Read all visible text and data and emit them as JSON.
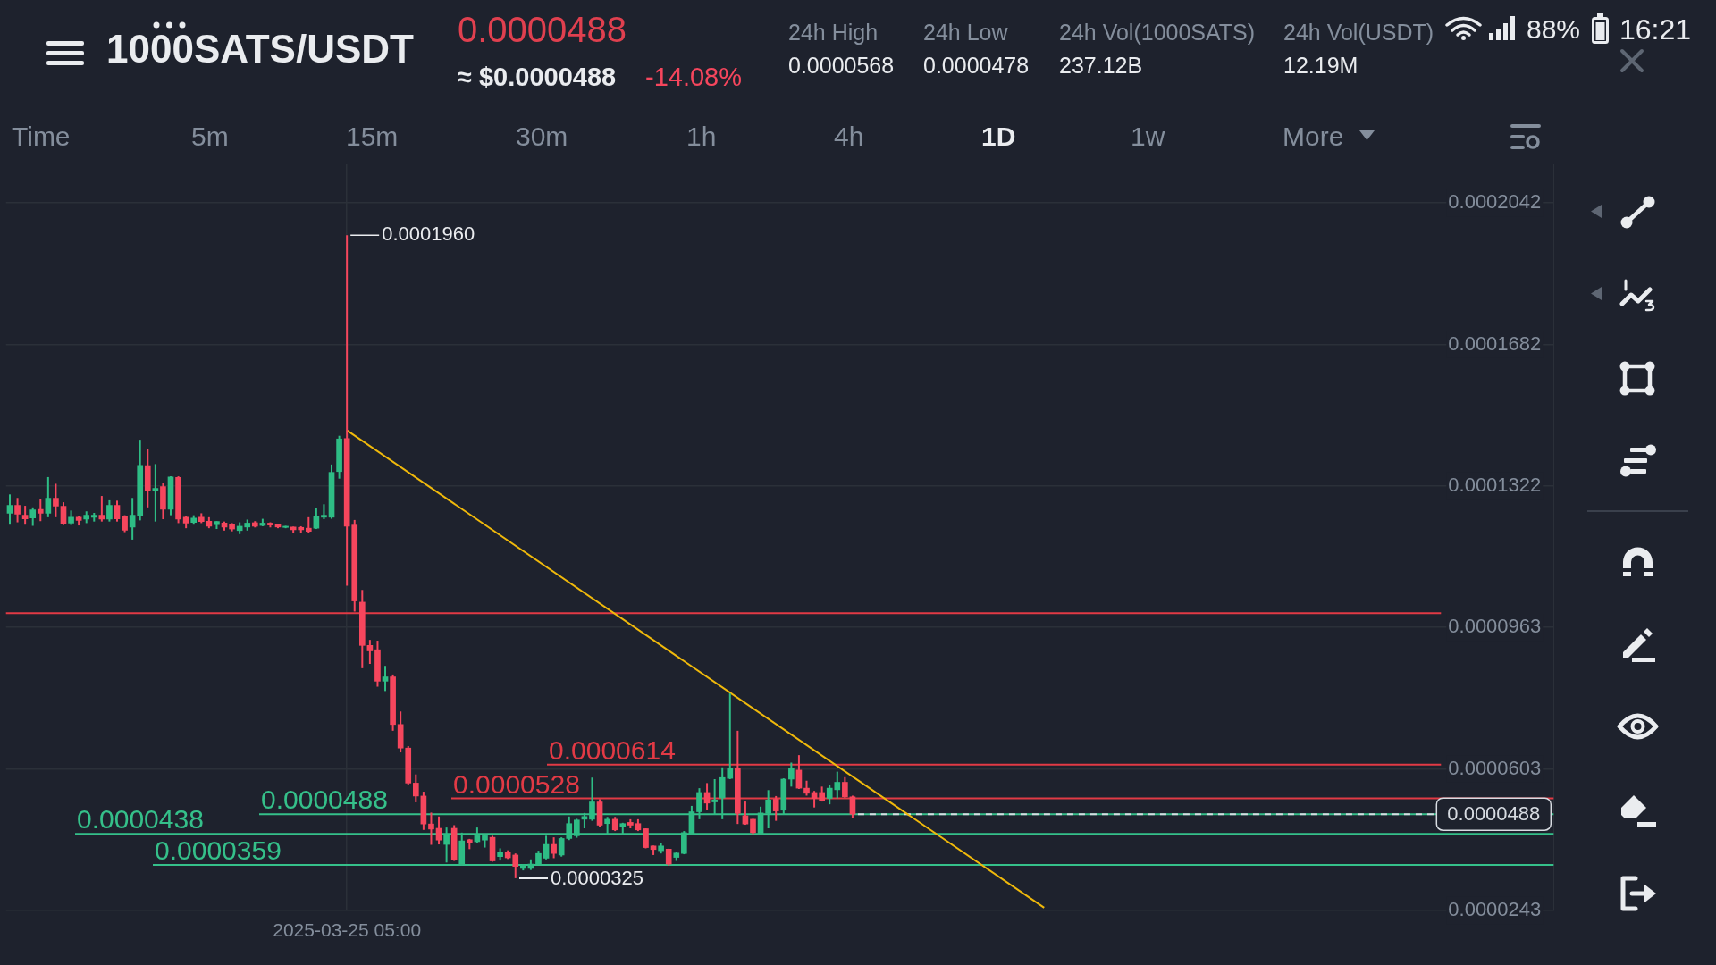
{
  "chart_data": {
    "type": "candlestick",
    "title": "1000SATS/USDT",
    "categories": [
      null,
      null,
      null,
      null,
      null,
      null,
      null,
      null,
      null,
      null,
      null,
      null,
      null,
      null,
      null,
      null,
      null,
      null,
      null,
      null,
      null,
      null,
      null,
      null,
      null,
      null,
      null,
      null,
      null,
      null,
      null,
      null,
      null,
      null,
      null,
      null,
      null,
      null,
      null,
      null,
      null,
      null,
      null,
      null,
      "2025-03-25 05:00",
      null,
      null,
      null,
      null,
      null,
      null,
      null,
      null,
      null,
      null,
      null,
      null,
      null,
      null,
      null,
      null,
      null,
      null,
      null,
      null,
      null,
      null,
      null,
      null,
      null,
      null,
      null,
      null,
      null,
      null,
      null,
      null,
      null,
      null,
      null,
      null,
      null,
      null,
      null,
      null,
      null,
      null,
      null,
      null,
      null,
      null,
      null,
      null,
      null,
      null,
      null,
      null,
      null,
      null,
      null,
      null,
      null,
      null,
      null,
      null,
      null,
      null,
      null,
      null,
      null,
      null,
      null,
      null,
      null,
      null,
      null,
      null,
      null,
      null,
      null,
      null,
      null,
      null,
      null,
      null,
      null,
      null,
      null,
      null,
      null,
      null,
      null,
      null,
      null,
      null,
      null,
      null,
      null,
      null,
      null,
      null,
      null,
      null,
      null,
      null,
      null,
      null,
      null,
      null,
      null,
      null,
      null,
      null,
      null,
      null,
      null,
      null,
      null,
      null,
      null,
      null,
      null,
      null,
      null,
      null,
      null,
      null,
      null,
      null,
      null,
      null,
      null,
      null,
      null,
      null,
      null,
      null,
      null,
      null,
      null,
      null,
      null,
      null,
      null,
      null,
      null,
      null,
      null,
      null,
      null,
      null,
      null,
      null,
      null,
      null,
      null,
      null,
      null,
      null,
      null,
      null,
      null
    ],
    "series": [
      {
        "ohlc": [
          [
            0.0001253,
            0.0001301,
            0.0001224,
            0.0001273
          ],
          [
            0.0001273,
            0.0001292,
            0.000123,
            0.0001251
          ],
          [
            0.0001248,
            0.0001272,
            0.0001224,
            0.0001239
          ],
          [
            0.0001241,
            0.0001268,
            0.0001221,
            0.0001262
          ],
          [
            0.0001263,
            0.0001288,
            0.0001233,
            0.0001253
          ],
          [
            0.0001253,
            0.0001345,
            0.0001243,
            0.0001291
          ],
          [
            0.0001291,
            0.0001328,
            0.0001243,
            0.0001271
          ],
          [
            0.0001271,
            0.0001281,
            0.0001223,
            0.0001226
          ],
          [
            0.0001228,
            0.000126,
            0.0001223,
            0.0001243
          ],
          [
            0.0001243,
            0.0001245,
            0.0001222,
            0.0001235
          ],
          [
            0.0001238,
            0.0001258,
            0.0001228,
            0.0001248
          ],
          [
            0.0001243,
            0.0001254,
            0.0001232,
            0.0001248
          ],
          [
            0.0001248,
            0.0001297,
            0.0001232,
            0.0001238
          ],
          [
            0.0001238,
            0.0001286,
            0.0001232,
            0.0001273
          ],
          [
            0.0001273,
            0.0001285,
            0.0001232,
            0.0001239
          ],
          [
            0.0001245,
            0.0001248,
            0.0001205,
            0.000121
          ],
          [
            0.0001218,
            0.0001292,
            0.0001186,
            0.0001248
          ],
          [
            0.0001247,
            0.000144,
            0.0001235,
            0.0001375
          ],
          [
            0.0001374,
            0.0001416,
            0.0001268,
            0.0001309
          ],
          [
            0.000131,
            0.0001378,
            0.0001232,
            0.0001316
          ],
          [
            0.0001321,
            0.000133,
            0.0001238,
            0.0001263
          ],
          [
            0.0001263,
            0.0001347,
            0.0001248,
            0.0001345
          ],
          [
            0.0001344,
            0.0001347,
            0.0001228,
            0.0001238
          ],
          [
            0.0001243,
            0.0001247,
            0.0001215,
            0.0001228
          ],
          [
            0.000123,
            0.0001248,
            0.0001224,
            0.0001241
          ],
          [
            0.0001243,
            0.0001253,
            0.0001228,
            0.0001232
          ],
          [
            0.0001233,
            0.0001243,
            0.0001215,
            0.000122
          ],
          [
            0.0001224,
            0.0001233,
            0.0001213,
            0.0001232
          ],
          [
            0.0001228,
            0.0001232,
            0.0001209,
            0.0001218
          ],
          [
            0.0001224,
            0.0001228,
            0.0001207,
            0.0001213
          ],
          [
            0.0001209,
            0.000123,
            0.00012,
            0.000122
          ],
          [
            0.0001218,
            0.0001237,
            0.0001209,
            0.0001228
          ],
          [
            0.0001229,
            0.0001233,
            0.0001217,
            0.000122
          ],
          [
            0.0001222,
            0.0001239,
            0.000122,
            0.0001228
          ],
          [
            0.0001228,
            0.000123,
            0.0001217,
            0.0001223
          ],
          [
            0.0001224,
            0.0001225,
            0.0001215,
            0.0001218
          ],
          [
            0.0001217,
            0.0001221,
            0.0001215,
            0.000122
          ],
          [
            0.0001218,
            0.0001219,
            0.0001203,
            0.0001211
          ],
          [
            0.0001217,
            0.000122,
            0.0001203,
            0.0001211
          ],
          [
            0.0001215,
            0.0001243,
            0.0001203,
            0.0001207
          ],
          [
            0.0001215,
            0.0001266,
            0.0001213,
            0.0001245
          ],
          [
            0.0001243,
            0.0001276,
            0.0001238,
            0.0001248
          ],
          [
            0.0001243,
            0.0001377,
            0.0001239,
            0.0001357
          ],
          [
            0.0001359,
            0.000145,
            0.0001341,
            0.0001442
          ],
          [
            0.0001443,
            0.000196,
            0.0001069,
            0.000122
          ],
          [
            0.0001223,
            0.0001236,
            0.0001003,
            0.000103
          ],
          [
            0.0001027,
            0.0001058,
            8.59e-05,
            9.17e-05
          ],
          [
            9.17e-05,
            9.31e-05,
            8.7e-05,
            9.03e-05
          ],
          [
            9.06e-05,
            9.29e-05,
            8.12e-05,
            8.26e-05
          ],
          [
            8.26e-05,
            8.65e-05,
            8.01e-05,
            8.37e-05
          ],
          [
            8.37e-05,
            8.43e-05,
            7e-05,
            7.16e-05
          ],
          [
            7.16e-05,
            7.49e-05,
            6.45e-05,
            6.56e-05
          ],
          [
            6.56e-05,
            6.61e-05,
            5.63e-05,
            5.67e-05
          ],
          [
            5.67e-05,
            5.89e-05,
            5.18e-05,
            5.34e-05
          ],
          [
            5.34e-05,
            5.45e-05,
            4.48e-05,
            4.63e-05
          ],
          [
            4.63e-05,
            4.92e-05,
            4.1e-05,
            4.5e-05
          ],
          [
            4.52e-05,
            4.82e-05,
            4.11e-05,
            4.22e-05
          ],
          [
            4.11e-05,
            4.54e-05,
            3.65e-05,
            4.37e-05
          ],
          [
            4.52e-05,
            4.6e-05,
            3.69e-05,
            3.73e-05
          ],
          [
            3.61e-05,
            4.41e-05,
            3.58e-05,
            4.2e-05
          ],
          [
            4.23e-05,
            4.25e-05,
            3.99e-05,
            4.16e-05
          ],
          [
            4.18e-05,
            4.54e-05,
            4.14e-05,
            4.33e-05
          ],
          [
            4.22e-05,
            4.37e-05,
            4.03e-05,
            4.33e-05
          ],
          [
            4.29e-05,
            4.33e-05,
            3.67e-05,
            3.69e-05
          ],
          [
            3.8e-05,
            4.01e-05,
            3.7e-05,
            3.92e-05
          ],
          [
            3.92e-05,
            3.96e-05,
            3.74e-05,
            3.77e-05
          ],
          [
            3.84e-05,
            3.88e-05,
            3.25e-05,
            3.55e-05
          ],
          [
            3.5e-05,
            3.61e-05,
            3.45e-05,
            3.58e-05
          ],
          [
            3.5e-05,
            3.73e-05,
            3.46e-05,
            3.61e-05
          ],
          [
            3.61e-05,
            3.95e-05,
            3.6e-05,
            3.88e-05
          ],
          [
            3.76e-05,
            4.33e-05,
            3.73e-05,
            4.11e-05
          ],
          [
            4.11e-05,
            4.29e-05,
            3.76e-05,
            3.88e-05
          ],
          [
            3.84e-05,
            4.29e-05,
            3.8e-05,
            4.26e-05
          ],
          [
            4.26e-05,
            4.82e-05,
            4.22e-05,
            4.64e-05
          ],
          [
            4.33e-05,
            4.76e-05,
            4.28e-05,
            4.73e-05
          ],
          [
            4.75e-05,
            4.91e-05,
            4.52e-05,
            4.82e-05
          ],
          [
            4.75e-05,
            5.81e-05,
            4.71e-05,
            5.19e-05
          ],
          [
            5.19e-05,
            5.26e-05,
            4.56e-05,
            4.6e-05
          ],
          [
            4.64e-05,
            4.81e-05,
            4.37e-05,
            4.75e-05
          ],
          [
            4.75e-05,
            4.81e-05,
            4.45e-05,
            4.48e-05
          ],
          [
            4.56e-05,
            4.66e-05,
            4.37e-05,
            4.64e-05
          ],
          [
            4.67e-05,
            4.75e-05,
            4.52e-05,
            4.6e-05
          ],
          [
            4.64e-05,
            4.75e-05,
            4.45e-05,
            4.48e-05
          ],
          [
            4.51e-05,
            4.52e-05,
            4.01e-05,
            4.03e-05
          ],
          [
            4.07e-05,
            4.08e-05,
            3.84e-05,
            3.98e-05
          ],
          [
            3.95e-05,
            4.14e-05,
            3.88e-05,
            4.07e-05
          ],
          [
            3.99e-05,
            4e-05,
            3.57e-05,
            3.61e-05
          ],
          [
            3.78e-05,
            3.92e-05,
            3.69e-05,
            3.89e-05
          ],
          [
            3.88e-05,
            4.45e-05,
            3.86e-05,
            4.41e-05
          ],
          [
            4.38e-05,
            5.09e-05,
            4.37e-05,
            4.94e-05
          ],
          [
            4.94e-05,
            5.54e-05,
            4.75e-05,
            5.43e-05
          ],
          [
            5.43e-05,
            5.67e-05,
            4.98e-05,
            5.16e-05
          ],
          [
            5.19e-05,
            5.77e-05,
            4.86e-05,
            5.24e-05
          ],
          [
            5.29e-05,
            6.07e-05,
            4.75e-05,
            5.81e-05
          ],
          [
            5.79e-05,
            7.95e-05,
            5.77e-05,
            6.05e-05
          ],
          [
            6.05e-05,
            7e-05,
            4.63e-05,
            4.9e-05
          ],
          [
            4.84e-05,
            5.2e-05,
            4.61e-05,
            4.63e-05
          ],
          [
            4.75e-05,
            4.76e-05,
            4.37e-05,
            4.41e-05
          ],
          [
            4.38e-05,
            5.07e-05,
            4.37e-05,
            4.91e-05
          ],
          [
            4.9e-05,
            5.49e-05,
            4.52e-05,
            5.24e-05
          ],
          [
            5.26e-05,
            5.34e-05,
            4.71e-05,
            4.96e-05
          ],
          [
            4.98e-05,
            5.79e-05,
            4.86e-05,
            5.77e-05
          ],
          [
            5.77e-05,
            6.19e-05,
            5.58e-05,
            6.04e-05
          ],
          [
            6e-05,
            6.38e-05,
            5.52e-05,
            5.54e-05
          ],
          [
            5.54e-05,
            5.73e-05,
            5.35e-05,
            5.41e-05
          ],
          [
            5.43e-05,
            5.47e-05,
            5.05e-05,
            5.28e-05
          ],
          [
            5.43e-05,
            5.58e-05,
            5.2e-05,
            5.22e-05
          ],
          [
            5.28e-05,
            5.62e-05,
            5.13e-05,
            5.54e-05
          ],
          [
            5.5e-05,
            5.96e-05,
            5.28e-05,
            5.69e-05
          ],
          [
            5.69e-05,
            5.82e-05,
            5.29e-05,
            5.32e-05
          ],
          [
            5.32e-05,
            5.35e-05,
            4.78e-05,
            4.88e-05
          ],
          null,
          null,
          null,
          null,
          null,
          null,
          null,
          null,
          null,
          null,
          null,
          null,
          null,
          null,
          null,
          null,
          null,
          null,
          null,
          null,
          null,
          null,
          null,
          null,
          null,
          null,
          null,
          null,
          null,
          null,
          null,
          null,
          null,
          null,
          null,
          null,
          null,
          null,
          null,
          null,
          null,
          null,
          null,
          null,
          null,
          null,
          null,
          null,
          null,
          null,
          null,
          null,
          null,
          null,
          null,
          null,
          null,
          null,
          null,
          null,
          null,
          null,
          null,
          null,
          null,
          null,
          null,
          null,
          null,
          null,
          null,
          null,
          null,
          null,
          null,
          null,
          null,
          null,
          null,
          null,
          null,
          null,
          null,
          null,
          null,
          null,
          null,
          null,
          null,
          null,
          null
        ],
        "colors": [
          "#2ebd85",
          "#f6465d",
          "#f6465d",
          "#2ebd85",
          "#f6465d",
          "#2ebd85",
          "#f6465d",
          "#f6465d",
          "#2ebd85",
          "#f6465d",
          "#2ebd85",
          "#2ebd85",
          "#f6465d",
          "#2ebd85",
          "#f6465d",
          "#f6465d",
          "#2ebd85",
          "#2ebd85",
          "#f6465d",
          "#2ebd85",
          "#f6465d",
          "#2ebd85",
          "#f6465d",
          "#f6465d",
          "#2ebd85",
          "#f6465d",
          "#f6465d",
          "#2ebd85",
          "#f6465d",
          "#f6465d",
          "#2ebd85",
          "#2ebd85",
          "#f6465d",
          "#2ebd85",
          "#f6465d",
          "#f6465d",
          "#2ebd85",
          "#f6465d",
          "#f6465d",
          "#f6465d",
          "#2ebd85",
          "#2ebd85",
          "#2ebd85",
          "#2ebd85",
          "#f6465d",
          "#f6465d",
          "#f6465d",
          "#f6465d",
          "#f6465d",
          "#2ebd85",
          "#f6465d",
          "#f6465d",
          "#f6465d",
          "#f6465d",
          "#f6465d",
          "#f6465d",
          "#f6465d",
          "#2ebd85",
          "#f6465d",
          "#2ebd85",
          "#f6465d",
          "#2ebd85",
          "#2ebd85",
          "#f6465d",
          "#2ebd85",
          "#f6465d",
          "#f6465d",
          "#2ebd85",
          "#2ebd85",
          "#2ebd85",
          "#2ebd85",
          "#f6465d",
          "#2ebd85",
          "#2ebd85",
          "#2ebd85",
          "#2ebd85",
          "#2ebd85",
          "#f6465d",
          "#2ebd85",
          "#f6465d",
          "#2ebd85",
          "#f6465d",
          "#f6465d",
          "#f6465d",
          "#f6465d",
          "#2ebd85",
          "#f6465d",
          "#2ebd85",
          "#2ebd85",
          "#2ebd85",
          "#2ebd85",
          "#f6465d",
          "#2ebd85",
          "#2ebd85",
          "#2ebd85",
          "#f6465d",
          "#f6465d",
          "#f6465d",
          "#2ebd85",
          "#2ebd85",
          "#f6465d",
          "#2ebd85",
          "#2ebd85",
          "#f6465d",
          "#f6465d",
          "#f6465d",
          "#f6465d",
          "#2ebd85",
          "#2ebd85",
          "#f6465d",
          "#f6465d",
          null,
          null,
          null,
          null,
          null,
          null,
          null,
          null,
          null,
          null,
          null,
          null,
          null,
          null,
          null,
          null,
          null,
          null,
          null,
          null,
          null,
          null,
          null,
          null,
          null,
          null,
          null,
          null,
          null,
          null,
          null,
          null,
          null,
          null,
          null,
          null,
          null,
          null,
          null,
          null,
          null,
          null,
          null,
          null,
          null,
          null,
          null,
          null,
          null,
          null,
          null,
          null,
          null,
          null,
          null,
          null,
          null,
          null,
          null,
          null,
          null,
          null,
          null,
          null,
          null,
          null,
          null,
          null,
          null,
          null,
          null,
          null,
          null,
          null,
          null,
          null,
          null,
          null,
          null,
          null,
          null,
          null,
          null,
          null,
          null,
          null,
          null,
          null,
          null,
          null,
          null
        ]
      },
      {
        "type": "line",
        "color": "#f0b90b",
        "values": [
          null,
          null,
          null,
          null,
          null,
          null,
          null,
          null,
          null,
          null,
          null,
          null,
          null,
          null,
          null,
          null,
          null,
          null,
          null,
          null,
          null,
          null,
          null,
          null,
          null,
          null,
          null,
          null,
          null,
          null,
          null,
          null,
          null,
          null,
          null,
          null,
          null,
          null,
          null,
          null,
          null,
          null,
          null,
          null,
          0.0001464,
          null,
          null,
          null,
          null,
          null,
          null,
          null,
          null,
          null,
          null,
          null,
          null,
          null,
          null,
          null,
          null,
          null,
          null,
          null,
          null,
          null,
          null,
          null,
          null,
          null,
          null,
          null,
          null,
          null,
          null,
          null,
          null,
          null,
          null,
          null,
          null,
          null,
          null,
          null,
          null,
          null,
          null,
          null,
          null,
          null,
          null,
          null,
          null,
          null,
          null,
          null,
          null,
          null,
          null,
          null,
          null,
          null,
          null,
          null,
          null,
          null,
          null,
          null,
          null,
          null,
          null,
          null,
          null,
          null,
          null,
          null,
          null,
          null,
          null,
          null,
          null,
          null,
          null,
          null,
          null,
          null,
          null,
          null,
          null,
          null,
          null,
          null,
          null,
          null,
          null,
          2.5e-05,
          null,
          null,
          null,
          null,
          null,
          null,
          null,
          null,
          null,
          null,
          null,
          null,
          null,
          null,
          null,
          null,
          null,
          null,
          null,
          null,
          null,
          null,
          null,
          null,
          null,
          null,
          null,
          null,
          null,
          null,
          null,
          null,
          null,
          null,
          null,
          null,
          null,
          null,
          null,
          null,
          null,
          null,
          null,
          null,
          null,
          null,
          null,
          null,
          null,
          null,
          null,
          null,
          null,
          null,
          null,
          null,
          null,
          null,
          null,
          null,
          null,
          null,
          null,
          null,
          null,
          null
        ]
      }
    ],
    "ylim": [
      2.43e-05,
      0.000214
    ],
    "yticks": [
      0.0002042,
      0.0001682,
      0.0001322,
      {
        "value": 9.63e-05,
        "label": "0.0000963"
      },
      {
        "value": 6.03e-05,
        "label": "0.0000603"
      },
      {
        "value": 2.43e-05,
        "label": "0.0000243"
      }
    ],
    "grid": true,
    "ref_lines": [
      {
        "axis": "y",
        "value": 9.99e-05,
        "color": "#e23a45"
      },
      {
        "axis": "y",
        "value": 6.14e-05,
        "label": "0.0000614",
        "color": "#e23a45"
      },
      {
        "axis": "y",
        "value": 5.28e-05,
        "label": "0.0000528",
        "color": "#e23a45"
      },
      {
        "axis": "y",
        "value": 4.88e-05,
        "label": "0.0000488",
        "color": "#35c08a"
      },
      {
        "axis": "y",
        "value": 4.38e-05,
        "label": "0.0000438",
        "color": "#35c08a"
      },
      {
        "axis": "y",
        "value": 3.59e-05,
        "label": "0.0000359",
        "color": "#35c08a"
      },
      {
        "axis": "y",
        "value": 4.88e-05,
        "label": "0.0000488",
        "color": "#d8dce2",
        "line_style": "dashed"
      }
    ],
    "annotations": [
      "0.0000488",
      "≈ $0.0000488",
      "-14.08%",
      "24h High",
      "0.0000568",
      "24h Low",
      "0.0000478",
      "24h Vol(1000SATS)",
      "237.12B",
      "24h Vol(USDT)",
      "12.19M",
      "Time",
      "5m",
      "15m",
      "30m",
      "1h",
      "4h",
      "1D",
      "1w",
      "More",
      "88%",
      "16:21",
      {
        "text": "0.0001960",
        "x": "2025-03-25 05:00",
        "y": 0.000196
      },
      "0.0000325"
    ]
  }
}
